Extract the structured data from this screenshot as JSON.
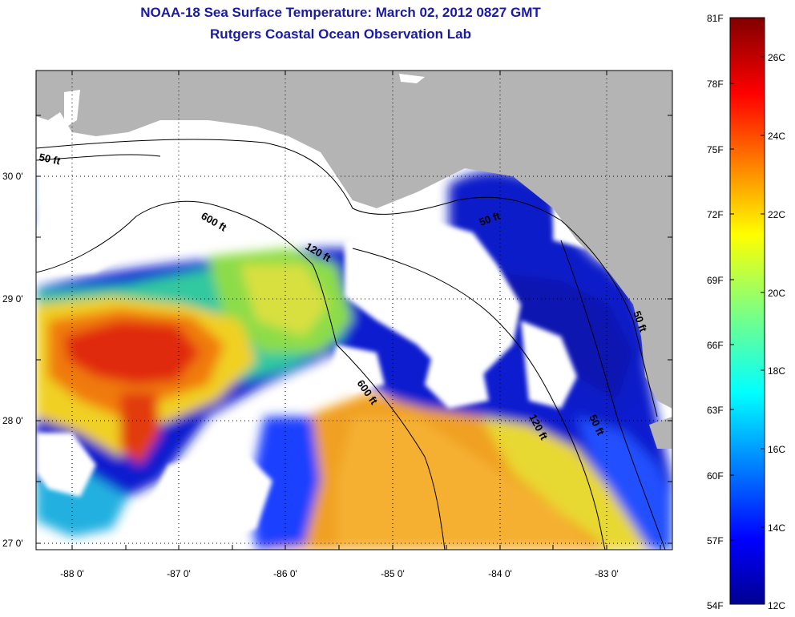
{
  "title_line1": "NOAA-18 Sea Surface Temperature:  March 02, 2012 0827 GMT",
  "title_line2": "Rutgers Coastal Ocean Observation Lab",
  "axes": {
    "y_ticks": [
      "30 0'",
      "29 0'",
      "28 0'",
      "27 0'"
    ],
    "x_ticks": [
      "-88 0'",
      "-87 0'",
      "-86 0'",
      "-85 0'",
      "-84 0'",
      "-83 0'"
    ]
  },
  "contour_labels": [
    "50 ft",
    "600 ft",
    "120 ft",
    "50 ft",
    "600 ft",
    "120 ft",
    "50 ft",
    "50 ft"
  ],
  "colorbar": {
    "f_labels": [
      "81F",
      "78F",
      "75F",
      "72F",
      "69F",
      "66F",
      "63F",
      "60F",
      "57F",
      "54F"
    ],
    "c_labels": [
      "26C",
      "24C",
      "22C",
      "20C",
      "18C",
      "16C",
      "14C",
      "12C"
    ]
  },
  "colors": {
    "land": "#b4b4b4",
    "cloud": "#ffffff",
    "title": "#1a1aa6"
  }
}
